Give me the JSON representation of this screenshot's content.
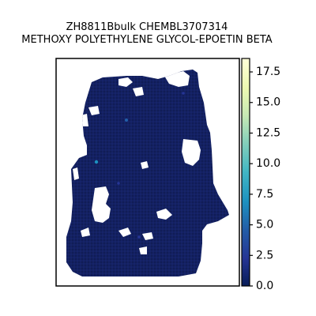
{
  "chart_data": {
    "type": "heatmap",
    "title_line1": "ZH8811Bbulk CHEMBL3707314",
    "title_line2": "METHOXY POLYETHYLENE GLYCOL-EPOETIN BETA",
    "xlabel": "",
    "ylabel": "",
    "grid": false,
    "colormap": "YlGnBu",
    "colorbar": {
      "range": [
        0.0,
        18.6
      ],
      "ticks": [
        0.0,
        2.5,
        5.0,
        7.5,
        10.0,
        12.5,
        15.0,
        17.5
      ],
      "tick_labels": [
        "0.0",
        "2.5",
        "5.0",
        "7.5",
        "10.0",
        "12.5",
        "15.0",
        "17.5"
      ]
    },
    "spot_values_summary": {
      "typical_value": 0.3,
      "max_value": 18.6,
      "note_values": "most spots near 0–1; a few outlier spots around 3–6"
    },
    "colors": {
      "low": "#0f1b53",
      "mid_low": "#253494",
      "mid": "#1d91c0",
      "mid_high": "#7fcdbb",
      "high": "#ffffd9"
    }
  }
}
